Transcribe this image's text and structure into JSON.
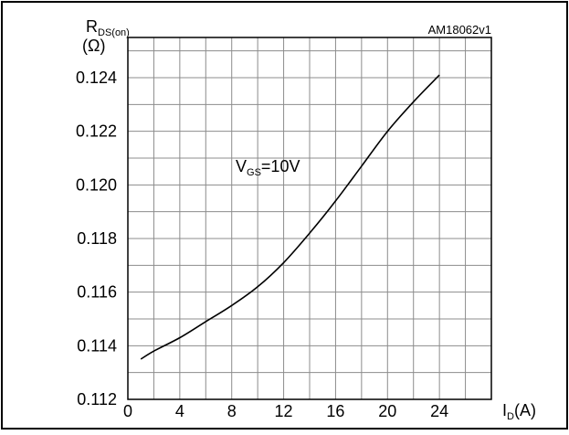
{
  "figure_id": "AM18062v1",
  "chart_data": {
    "type": "line",
    "xlabel": {
      "main": "I",
      "sub": "D",
      "unit": "(A)"
    },
    "ylabel": {
      "main": "R",
      "sub": "DS(on)",
      "unit": "(Ω)"
    },
    "annotation": {
      "main": "V",
      "sub": "GS",
      "rest": "=10V"
    },
    "xlim": [
      0,
      28
    ],
    "ylim": [
      0.112,
      0.1255
    ],
    "x_ticks": [
      0,
      4,
      8,
      12,
      16,
      20,
      24
    ],
    "x_tick_labels": [
      "0",
      "4",
      "8",
      "12",
      "16",
      "20",
      "24"
    ],
    "y_ticks": [
      0.112,
      0.114,
      0.116,
      0.118,
      0.12,
      0.122,
      0.124
    ],
    "y_tick_labels": [
      "0.112",
      "0.114",
      "0.116",
      "0.118",
      "0.120",
      "0.122",
      "0.124"
    ],
    "grid": true,
    "series": [
      {
        "x": [
          1,
          2,
          4,
          6,
          8,
          10,
          12,
          14,
          16,
          18,
          20,
          22,
          24
        ],
        "y": [
          0.1135,
          0.1138,
          0.1143,
          0.1149,
          0.1155,
          0.1162,
          0.1171,
          0.1182,
          0.1194,
          0.1207,
          0.122,
          0.1231,
          0.1241
        ]
      }
    ]
  }
}
